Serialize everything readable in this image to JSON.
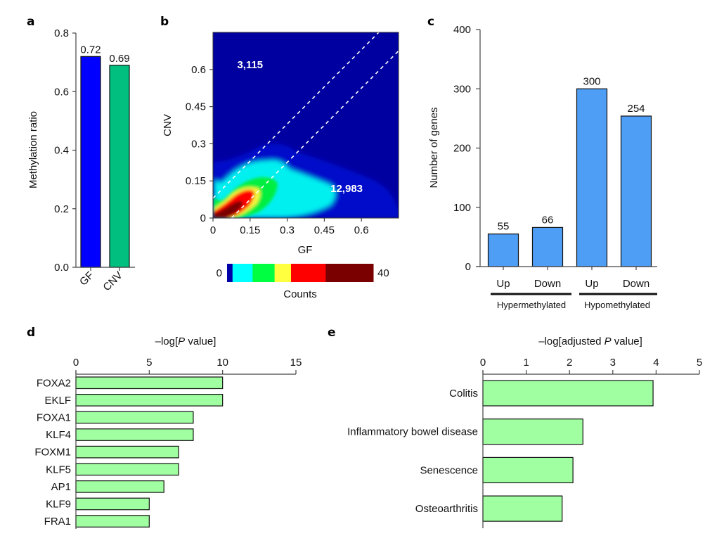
{
  "chart_data": [
    {
      "panel": "a",
      "type": "bar",
      "categories": [
        "GF",
        "CNV"
      ],
      "values": [
        0.72,
        0.69
      ],
      "data_labels": [
        "0.72",
        "0.69"
      ],
      "colors": [
        "#0000ff",
        "#00bf7f"
      ],
      "title": "",
      "xlabel": "",
      "ylabel": "Methylation ratio",
      "ylim": [
        0,
        0.8
      ],
      "yticks": [
        "0.0",
        "0.2",
        "0.4",
        "0.6",
        "0.8"
      ],
      "ytick_values": [
        0,
        0.2,
        0.4,
        0.6,
        0.8
      ],
      "grid": false
    },
    {
      "panel": "b",
      "type": "heatmap",
      "title": "",
      "xlabel": "GF",
      "ylabel": "CNV",
      "xlim": [
        0,
        0.75
      ],
      "ylim": [
        0,
        0.75
      ],
      "xticks": [
        "0",
        "0.15",
        "0.3",
        "0.45",
        "0.6"
      ],
      "xtick_values": [
        0,
        0.15,
        0.3,
        0.45,
        0.6
      ],
      "yticks": [
        "0",
        "0.15",
        "0.3",
        "0.45",
        "0.6"
      ],
      "ytick_values": [
        0,
        0.15,
        0.3,
        0.45,
        0.6
      ],
      "annotations": [
        {
          "text": "3,115",
          "region": "above upper diagonal",
          "x": 0.15,
          "y": 0.62
        },
        {
          "text": "12,983",
          "region": "below lower diagonal",
          "x": 0.54,
          "y": 0.12
        }
      ],
      "diagonal_lines": [
        {
          "slope": 1,
          "intercept": 0.08,
          "style": "dashed"
        },
        {
          "slope": 1,
          "intercept": -0.075,
          "style": "dashed"
        }
      ],
      "density_peak": {
        "x": 0.07,
        "y": 0.04
      },
      "colorbar": {
        "label": "Counts",
        "min": 0,
        "max": 40,
        "min_label": "0",
        "max_label": "40",
        "stops": [
          {
            "value": 0,
            "color": "#0000a8"
          },
          {
            "value": 1.5,
            "color": "#00ffff"
          },
          {
            "value": 7,
            "color": "#00ff40"
          },
          {
            "value": 13,
            "color": "#ffff40"
          },
          {
            "value": 17.5,
            "color": "#ff0000"
          },
          {
            "value": 27,
            "color": "#7a0000"
          }
        ]
      },
      "background_color": "#0000a0"
    },
    {
      "panel": "c",
      "type": "bar",
      "categories": [
        "Up",
        "Down",
        "Up",
        "Down"
      ],
      "groups": [
        {
          "name": "Hypermethylated",
          "members": [
            0,
            1
          ]
        },
        {
          "name": "Hypomethylated",
          "members": [
            2,
            3
          ]
        }
      ],
      "values": [
        55,
        66,
        300,
        254
      ],
      "data_labels": [
        "55",
        "66",
        "300",
        "254"
      ],
      "color": "#4f9ef5",
      "title": "",
      "xlabel": "",
      "ylabel": "Number of genes",
      "ylim": [
        0,
        400
      ],
      "yticks": [
        "0",
        "100",
        "200",
        "300",
        "400"
      ],
      "ytick_values": [
        0,
        100,
        200,
        300,
        400
      ],
      "grid": false
    },
    {
      "panel": "d",
      "type": "bar",
      "orientation": "horizontal",
      "categories": [
        "FOXA2",
        "EKLF",
        "FOXA1",
        "KLF4",
        "FOXM1",
        "KLF5",
        "AP1",
        "KLF9",
        "FRA1"
      ],
      "values": [
        10,
        10,
        8,
        8,
        7,
        7,
        6,
        5,
        5
      ],
      "color": "#a0ffa0",
      "title": "",
      "xlabel_parts": [
        "–log[",
        "P",
        " value]"
      ],
      "xlim": [
        0,
        15
      ],
      "xticks": [
        "0",
        "5",
        "10",
        "15"
      ],
      "xtick_values": [
        0,
        5,
        10,
        15
      ],
      "grid": false
    },
    {
      "panel": "e",
      "type": "bar",
      "orientation": "horizontal",
      "categories": [
        "Colitis",
        "Inflammatory bowel disease",
        "Senescence",
        "Osteoarthritis"
      ],
      "values": [
        3.93,
        2.31,
        2.08,
        1.83
      ],
      "color": "#a0ffa0",
      "title": "",
      "xlabel_parts": [
        "–log[adjusted ",
        "P",
        " value]"
      ],
      "xlim": [
        0,
        5
      ],
      "xticks": [
        "0",
        "1",
        "2",
        "3",
        "4",
        "5"
      ],
      "xtick_values": [
        0,
        1,
        2,
        3,
        4,
        5
      ],
      "grid": false
    }
  ],
  "panel_labels": [
    "a",
    "b",
    "c",
    "d",
    "e"
  ]
}
